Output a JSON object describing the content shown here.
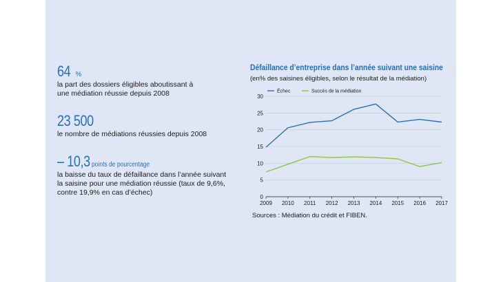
{
  "stats": [
    {
      "value": "64",
      "unit": "%",
      "text": [
        "la part des dossiers éligibles aboutissant à",
        "une médiation réussie depuis 2008"
      ]
    },
    {
      "value": "23 500",
      "unit": "",
      "text": [
        "le nombre de médiations réussies depuis 2008"
      ]
    },
    {
      "value": "– 10,3",
      "unit": "points de pourcentage",
      "text": [
        "la baisse du taux de défaillance dans l’année suivant",
        "la saisine pour une médiation réussie (taux de 9,6%,",
        "contre 19,9% en cas d’échec)"
      ]
    }
  ],
  "chart_data": {
    "type": "line",
    "title": "Défaillance d’entreprise dans l’année suivant une saisine",
    "subtitle": "(en% des saisines éligibles, selon le résultat de la médiation)",
    "x": [
      2009,
      2010,
      2011,
      2012,
      2013,
      2014,
      2015,
      2016,
      2017
    ],
    "series": [
      {
        "name": "Échec",
        "color": "#2670b9",
        "values": [
          14.8,
          20.6,
          22.2,
          22.7,
          26.1,
          27.7,
          22.3,
          23.1,
          22.3
        ]
      },
      {
        "name": "Succès de la médiation",
        "color": "#8dc63f",
        "values": [
          7.4,
          9.7,
          12.0,
          11.7,
          11.9,
          11.7,
          11.3,
          9.0,
          10.2
        ]
      }
    ],
    "ylim": [
      0,
      30
    ],
    "yticks": [
      0,
      5,
      10,
      15,
      20,
      25,
      30
    ],
    "grid": true,
    "legend": "top-left",
    "source": "Sources : Médiation du crédit et FIBEN."
  },
  "colors": {
    "accent": "#2670b9",
    "panel": "#dfe6f5",
    "success": "#8dc63f"
  }
}
